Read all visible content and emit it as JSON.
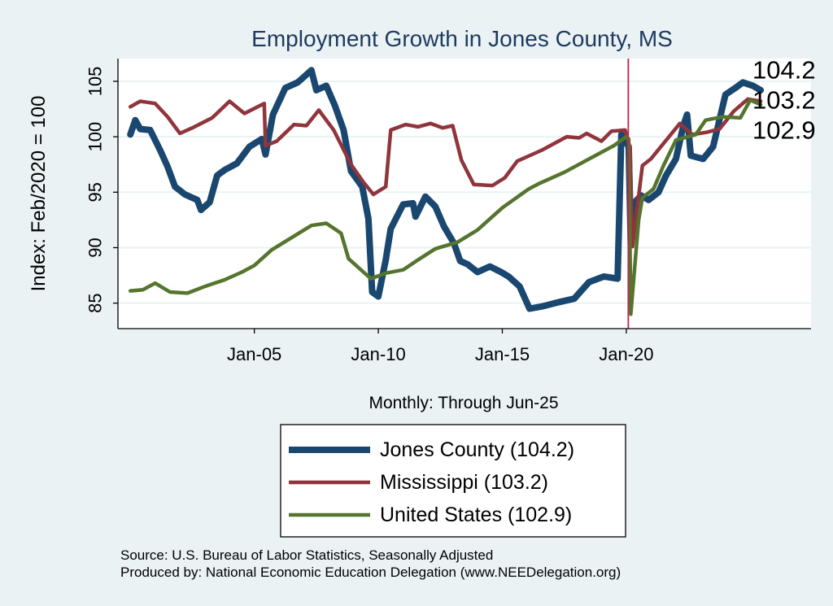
{
  "chart_data": {
    "type": "line",
    "title": "Employment Growth in Jones  County, MS",
    "xlabel": "Monthly: Through Jun-25",
    "ylabel": "Index: Feb/2020 = 100",
    "xlim": [
      1999.5,
      2027.45
    ],
    "ylim": [
      82.7,
      107.05
    ],
    "x_ticks": [
      {
        "value": 2005,
        "label": "Jan-05"
      },
      {
        "value": 2010,
        "label": "Jan-10"
      },
      {
        "value": 2015,
        "label": "Jan-15"
      },
      {
        "value": 2020,
        "label": "Jan-20"
      }
    ],
    "y_ticks": [
      85,
      90,
      95,
      100,
      105
    ],
    "reference_line_x": 2020.08,
    "grid": true,
    "legend_placement": "bottom",
    "end_labels": [
      "104.2",
      "103.2",
      "102.9"
    ],
    "series": [
      {
        "name": "Jones  County (104.2)",
        "color": "#1a476f",
        "points": [
          [
            2000.0,
            100.2
          ],
          [
            2000.2,
            101.5
          ],
          [
            2000.4,
            100.7
          ],
          [
            2000.8,
            100.6
          ],
          [
            2001.2,
            98.8
          ],
          [
            2001.5,
            97.3
          ],
          [
            2001.8,
            95.5
          ],
          [
            2002.2,
            94.8
          ],
          [
            2002.7,
            94.3
          ],
          [
            2002.85,
            93.4
          ],
          [
            2003.2,
            94.1
          ],
          [
            2003.5,
            96.5
          ],
          [
            2003.8,
            97.0
          ],
          [
            2004.3,
            97.6
          ],
          [
            2004.8,
            99.1
          ],
          [
            2005.3,
            99.8
          ],
          [
            2005.45,
            98.4
          ],
          [
            2005.75,
            102.0
          ],
          [
            2006.25,
            104.4
          ],
          [
            2006.75,
            104.9
          ],
          [
            2007.3,
            106.0
          ],
          [
            2007.5,
            104.2
          ],
          [
            2007.9,
            104.6
          ],
          [
            2008.25,
            102.8
          ],
          [
            2008.6,
            100.6
          ],
          [
            2008.9,
            96.9
          ],
          [
            2009.35,
            95.5
          ],
          [
            2009.6,
            92.6
          ],
          [
            2009.75,
            86.0
          ],
          [
            2010.0,
            85.6
          ],
          [
            2010.3,
            88.9
          ],
          [
            2010.5,
            91.7
          ],
          [
            2011.0,
            93.9
          ],
          [
            2011.4,
            94.0
          ],
          [
            2011.5,
            92.8
          ],
          [
            2011.9,
            94.6
          ],
          [
            2012.3,
            93.7
          ],
          [
            2012.65,
            91.9
          ],
          [
            2013.05,
            90.4
          ],
          [
            2013.3,
            88.8
          ],
          [
            2013.6,
            88.5
          ],
          [
            2014.0,
            87.8
          ],
          [
            2014.5,
            88.3
          ],
          [
            2014.95,
            87.8
          ],
          [
            2015.25,
            87.4
          ],
          [
            2015.7,
            86.5
          ],
          [
            2016.1,
            84.5
          ],
          [
            2016.6,
            84.7
          ],
          [
            2017.3,
            85.1
          ],
          [
            2017.9,
            85.4
          ],
          [
            2018.5,
            86.9
          ],
          [
            2019.1,
            87.4
          ],
          [
            2019.65,
            87.2
          ],
          [
            2019.8,
            100.2
          ],
          [
            2020.1,
            99.1
          ],
          [
            2020.18,
            90.3
          ],
          [
            2020.3,
            94.0
          ],
          [
            2020.6,
            94.7
          ],
          [
            2020.9,
            94.3
          ],
          [
            2021.3,
            95.0
          ],
          [
            2021.6,
            96.5
          ],
          [
            2022.0,
            98.0
          ],
          [
            2022.3,
            101.0
          ],
          [
            2022.45,
            102.0
          ],
          [
            2022.6,
            98.3
          ],
          [
            2023.1,
            98.0
          ],
          [
            2023.5,
            99.1
          ],
          [
            2024.0,
            103.8
          ],
          [
            2024.4,
            104.4
          ],
          [
            2024.7,
            104.9
          ],
          [
            2025.1,
            104.6
          ],
          [
            2025.42,
            104.2
          ]
        ]
      },
      {
        "name": "Mississippi (103.2)",
        "color": "#90353b",
        "points": [
          [
            2000.0,
            102.7
          ],
          [
            2000.4,
            103.2
          ],
          [
            2001.0,
            103.0
          ],
          [
            2001.5,
            101.8
          ],
          [
            2002.0,
            100.3
          ],
          [
            2002.5,
            100.8
          ],
          [
            2003.3,
            101.7
          ],
          [
            2004.0,
            103.2
          ],
          [
            2004.6,
            102.1
          ],
          [
            2005.4,
            103.0
          ],
          [
            2005.45,
            99.2
          ],
          [
            2005.9,
            99.6
          ],
          [
            2006.6,
            101.1
          ],
          [
            2007.1,
            101.0
          ],
          [
            2007.6,
            102.4
          ],
          [
            2008.2,
            100.6
          ],
          [
            2008.9,
            97.5
          ],
          [
            2009.4,
            95.9
          ],
          [
            2009.8,
            94.8
          ],
          [
            2010.3,
            95.5
          ],
          [
            2010.5,
            100.6
          ],
          [
            2011.1,
            101.1
          ],
          [
            2011.6,
            100.9
          ],
          [
            2012.1,
            101.2
          ],
          [
            2012.6,
            100.8
          ],
          [
            2013.0,
            101.0
          ],
          [
            2013.35,
            97.9
          ],
          [
            2013.85,
            95.7
          ],
          [
            2014.6,
            95.6
          ],
          [
            2015.1,
            96.3
          ],
          [
            2015.6,
            97.8
          ],
          [
            2016.6,
            98.8
          ],
          [
            2017.6,
            100.0
          ],
          [
            2018.1,
            99.9
          ],
          [
            2018.4,
            100.3
          ],
          [
            2019.0,
            99.6
          ],
          [
            2019.4,
            100.5
          ],
          [
            2019.95,
            100.6
          ],
          [
            2020.15,
            99.0
          ],
          [
            2020.25,
            90.1
          ],
          [
            2020.65,
            97.4
          ],
          [
            2020.99,
            98.0
          ],
          [
            2022.16,
            101.2
          ],
          [
            2022.66,
            100.2
          ],
          [
            2023.23,
            100.4
          ],
          [
            2023.76,
            100.7
          ],
          [
            2024.33,
            102.3
          ],
          [
            2024.9,
            103.4
          ],
          [
            2025.42,
            103.2
          ]
        ]
      },
      {
        "name": "United States (102.9)",
        "color": "#55752f",
        "points": [
          [
            2000.0,
            86.1
          ],
          [
            2000.5,
            86.2
          ],
          [
            2001.0,
            86.8
          ],
          [
            2001.6,
            86.0
          ],
          [
            2002.3,
            85.9
          ],
          [
            2003.0,
            86.5
          ],
          [
            2003.8,
            87.1
          ],
          [
            2004.5,
            87.8
          ],
          [
            2005.0,
            88.4
          ],
          [
            2005.7,
            89.8
          ],
          [
            2006.5,
            90.9
          ],
          [
            2007.3,
            92.0
          ],
          [
            2007.9,
            92.2
          ],
          [
            2008.5,
            91.3
          ],
          [
            2008.8,
            89.0
          ],
          [
            2009.4,
            87.8
          ],
          [
            2009.7,
            87.2
          ],
          [
            2010.3,
            87.7
          ],
          [
            2011.0,
            88.0
          ],
          [
            2011.6,
            88.9
          ],
          [
            2012.3,
            89.9
          ],
          [
            2013.2,
            90.5
          ],
          [
            2014.0,
            91.6
          ],
          [
            2015.0,
            93.6
          ],
          [
            2016.07,
            95.3
          ],
          [
            2016.5,
            95.8
          ],
          [
            2017.5,
            96.8
          ],
          [
            2018.5,
            98.0
          ],
          [
            2019.5,
            99.2
          ],
          [
            2020.0,
            100.0
          ],
          [
            2020.1,
            99.8
          ],
          [
            2020.18,
            84.0
          ],
          [
            2020.5,
            92.5
          ],
          [
            2020.65,
            94.5
          ],
          [
            2021.1,
            95.3
          ],
          [
            2021.5,
            97.4
          ],
          [
            2022.0,
            99.7
          ],
          [
            2022.8,
            100.2
          ],
          [
            2023.2,
            101.5
          ],
          [
            2023.9,
            101.8
          ],
          [
            2024.6,
            101.7
          ],
          [
            2025.0,
            103.3
          ],
          [
            2025.42,
            102.9
          ]
        ]
      }
    ]
  },
  "footer": {
    "source": "Source: U.S. Bureau of Labor Statistics, Seasonally Adjusted",
    "produced": "Produced by: National Economic Education Delegation (www.NEEDelegation.org)"
  }
}
